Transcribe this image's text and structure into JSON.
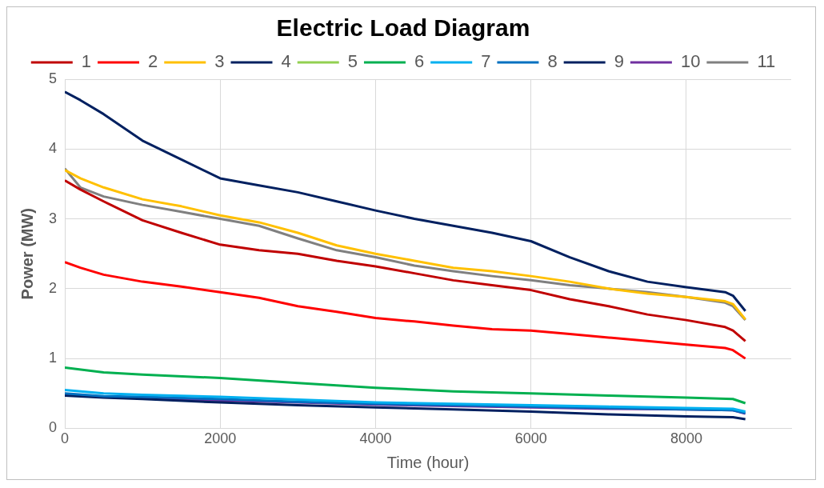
{
  "chart_data": {
    "type": "line",
    "title": "Electric Load Diagram",
    "xlabel": "Time (hour)",
    "ylabel": "Power (MW)",
    "xlim": [
      0,
      9350
    ],
    "xticks": [
      0,
      2000,
      4000,
      6000,
      8000
    ],
    "ylim": [
      0,
      5
    ],
    "yticks": [
      0,
      1,
      2,
      3,
      4,
      5
    ],
    "grid": true,
    "legend": "top",
    "marker": "none",
    "line_style": "solid",
    "x": [
      0,
      200,
      500,
      1000,
      1500,
      2000,
      2500,
      3000,
      3500,
      4000,
      4500,
      5000,
      5500,
      6000,
      6500,
      7000,
      7500,
      8000,
      8500,
      8600,
      8760
    ],
    "series": [
      {
        "name": "1",
        "color": "#c00000",
        "values": [
          3.55,
          3.42,
          3.25,
          2.98,
          2.8,
          2.63,
          2.55,
          2.5,
          2.4,
          2.32,
          2.22,
          2.12,
          2.05,
          1.98,
          1.85,
          1.75,
          1.63,
          1.55,
          1.45,
          1.4,
          1.25
        ]
      },
      {
        "name": "2",
        "color": "#ff0000",
        "values": [
          2.38,
          2.3,
          2.2,
          2.1,
          2.03,
          1.95,
          1.87,
          1.75,
          1.67,
          1.58,
          1.53,
          1.47,
          1.42,
          1.4,
          1.35,
          1.3,
          1.25,
          1.2,
          1.15,
          1.12,
          1.0
        ]
      },
      {
        "name": "3",
        "color": "#ffc000",
        "values": [
          3.7,
          3.58,
          3.45,
          3.28,
          3.18,
          3.05,
          2.95,
          2.8,
          2.62,
          2.5,
          2.4,
          2.3,
          2.25,
          2.18,
          2.1,
          2.0,
          1.93,
          1.88,
          1.82,
          1.78,
          1.56
        ]
      },
      {
        "name": "4",
        "color": "#002060",
        "values": [
          4.82,
          4.7,
          4.5,
          4.12,
          3.85,
          3.58,
          3.48,
          3.38,
          3.25,
          3.12,
          3.0,
          2.9,
          2.8,
          2.68,
          2.45,
          2.25,
          2.1,
          2.02,
          1.95,
          1.9,
          1.68
        ]
      },
      {
        "name": "5",
        "color": "#92d050",
        "values": [
          null,
          null,
          null,
          null,
          null,
          null,
          null,
          null,
          null,
          null,
          null,
          null,
          null,
          null,
          null,
          null,
          null,
          null,
          null,
          null,
          null
        ]
      },
      {
        "name": "6",
        "color": "#00b050",
        "x": [
          0,
          500,
          1000,
          2000,
          3000,
          4000,
          5000,
          6000,
          7000,
          8000,
          8600,
          8760
        ],
        "values": [
          0.87,
          0.8,
          0.77,
          0.72,
          0.65,
          0.58,
          0.53,
          0.5,
          0.47,
          0.44,
          0.42,
          0.36
        ]
      },
      {
        "name": "7",
        "color": "#00b0f0",
        "x": [
          0,
          500,
          1000,
          2000,
          3000,
          4000,
          5000,
          6000,
          7000,
          8000,
          8600,
          8760
        ],
        "values": [
          0.55,
          0.5,
          0.48,
          0.45,
          0.41,
          0.37,
          0.35,
          0.33,
          0.31,
          0.29,
          0.28,
          0.24
        ]
      },
      {
        "name": "8",
        "color": "#0070c0",
        "x": [
          0,
          500,
          1000,
          2000,
          3000,
          4000,
          5000,
          6000,
          7000,
          8000,
          8600,
          8760
        ],
        "values": [
          0.5,
          0.46,
          0.45,
          0.42,
          0.38,
          0.35,
          0.33,
          0.31,
          0.29,
          0.27,
          0.26,
          0.22
        ]
      },
      {
        "name": "9",
        "color": "#002060",
        "x": [
          0,
          500,
          1000,
          2000,
          3000,
          4000,
          5000,
          6000,
          7000,
          8000,
          8600,
          8760
        ],
        "values": [
          0.47,
          0.44,
          0.42,
          0.37,
          0.33,
          0.3,
          0.27,
          0.24,
          0.2,
          0.17,
          0.16,
          0.13
        ]
      },
      {
        "name": "10",
        "color": "#7030a0",
        "x": [
          0,
          500,
          1000,
          2000,
          3000,
          4000,
          5000,
          6000,
          7000,
          8000,
          8600,
          8760
        ],
        "values": [
          0.48,
          0.45,
          0.43,
          0.4,
          0.37,
          0.34,
          0.32,
          0.3,
          0.28,
          0.27,
          0.26,
          0.21
        ]
      },
      {
        "name": "11",
        "color": "#808080",
        "values": [
          3.72,
          3.45,
          3.32,
          3.2,
          3.1,
          3.0,
          2.9,
          2.72,
          2.55,
          2.45,
          2.33,
          2.25,
          2.18,
          2.12,
          2.05,
          2.0,
          1.95,
          1.88,
          1.8,
          1.75,
          1.55
        ]
      }
    ]
  }
}
